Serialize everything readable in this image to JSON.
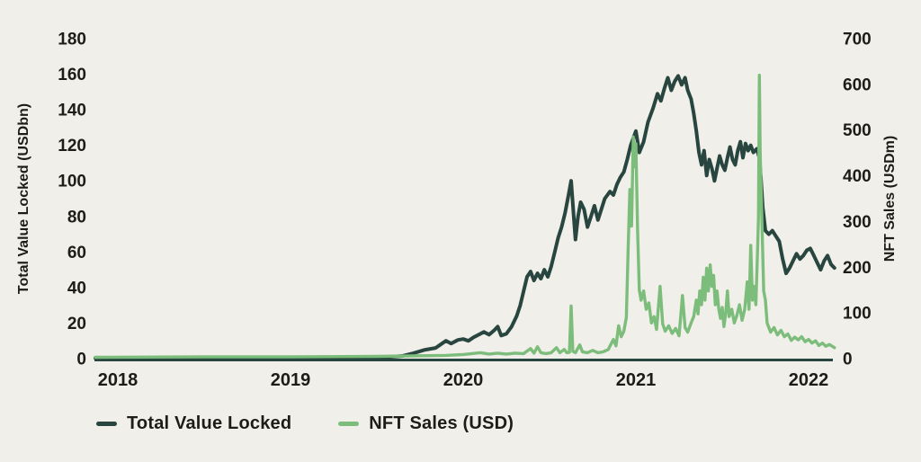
{
  "colors": {
    "background": "#f1efe9",
    "text": "#1e1c17",
    "tvl_line": "#28463f",
    "nft_line": "#7cbd7b",
    "axis_line": "#28463f"
  },
  "legend": {
    "items": [
      {
        "label": "Total Value Locked",
        "color": "#28463f"
      },
      {
        "label": "NFT Sales (USD)",
        "color": "#7cbd7b"
      }
    ]
  },
  "chart_data": {
    "type": "line",
    "title": "",
    "grid": false,
    "legend_position": "bottom-left",
    "x_axis": {
      "labels": [
        "2018",
        "2019",
        "2020",
        "2021",
        "2022"
      ],
      "label_years": [
        2018,
        2019,
        2020,
        2021,
        2022
      ],
      "range": [
        2017.865,
        2022.155
      ]
    },
    "left_axis": {
      "title": "Total Value Locked (USDbn)",
      "ticks": [
        0,
        20,
        40,
        60,
        80,
        100,
        120,
        140,
        160,
        180
      ],
      "range": [
        0,
        180
      ]
    },
    "right_axis": {
      "title": "NFT Sales (USDm)",
      "ticks": [
        0,
        100,
        200,
        300,
        400,
        500,
        600,
        700
      ],
      "range": [
        0,
        700
      ]
    },
    "series": [
      {
        "name": "Total Value Locked",
        "axis": "left",
        "color": "#28463f",
        "stroke_width": 4,
        "points": [
          [
            2017.87,
            0.3
          ],
          [
            2018.3,
            0.4
          ],
          [
            2018.7,
            0.5
          ],
          [
            2019.0,
            0.5
          ],
          [
            2019.3,
            0.6
          ],
          [
            2019.55,
            0.8
          ],
          [
            2019.65,
            1.5
          ],
          [
            2019.71,
            3
          ],
          [
            2019.78,
            5
          ],
          [
            2019.84,
            6
          ],
          [
            2019.87,
            8
          ],
          [
            2019.9,
            10
          ],
          [
            2019.93,
            8.5
          ],
          [
            2019.97,
            10.5
          ],
          [
            2020.0,
            11
          ],
          [
            2020.03,
            10
          ],
          [
            2020.06,
            12
          ],
          [
            2020.09,
            13.5
          ],
          [
            2020.12,
            15
          ],
          [
            2020.15,
            13.5
          ],
          [
            2020.18,
            16
          ],
          [
            2020.2,
            18
          ],
          [
            2020.22,
            13
          ],
          [
            2020.25,
            14
          ],
          [
            2020.28,
            18
          ],
          [
            2020.31,
            24
          ],
          [
            2020.33,
            30
          ],
          [
            2020.35,
            38
          ],
          [
            2020.37,
            46
          ],
          [
            2020.39,
            49
          ],
          [
            2020.41,
            44
          ],
          [
            2020.43,
            48
          ],
          [
            2020.45,
            45
          ],
          [
            2020.47,
            50
          ],
          [
            2020.49,
            46
          ],
          [
            2020.51,
            52
          ],
          [
            2020.53,
            60
          ],
          [
            2020.55,
            68
          ],
          [
            2020.57,
            74
          ],
          [
            2020.59,
            82
          ],
          [
            2020.61,
            92
          ],
          [
            2020.625,
            100
          ],
          [
            2020.64,
            80
          ],
          [
            2020.65,
            67
          ],
          [
            2020.665,
            80
          ],
          [
            2020.68,
            88
          ],
          [
            2020.7,
            84
          ],
          [
            2020.72,
            74
          ],
          [
            2020.74,
            80
          ],
          [
            2020.76,
            86
          ],
          [
            2020.78,
            78
          ],
          [
            2020.8,
            84
          ],
          [
            2020.82,
            90
          ],
          [
            2020.85,
            94
          ],
          [
            2020.87,
            92
          ],
          [
            2020.89,
            98
          ],
          [
            2020.91,
            102
          ],
          [
            2020.93,
            105
          ],
          [
            2020.95,
            112
          ],
          [
            2020.97,
            120
          ],
          [
            2021.0,
            128
          ],
          [
            2021.02,
            116
          ],
          [
            2021.045,
            122
          ],
          [
            2021.07,
            133
          ],
          [
            2021.1,
            141
          ],
          [
            2021.125,
            149
          ],
          [
            2021.145,
            145
          ],
          [
            2021.165,
            152
          ],
          [
            2021.185,
            158
          ],
          [
            2021.205,
            151
          ],
          [
            2021.225,
            156
          ],
          [
            2021.245,
            159
          ],
          [
            2021.265,
            154
          ],
          [
            2021.285,
            158
          ],
          [
            2021.3,
            151
          ],
          [
            2021.32,
            146
          ],
          [
            2021.335,
            138
          ],
          [
            2021.35,
            128
          ],
          [
            2021.365,
            116
          ],
          [
            2021.38,
            109
          ],
          [
            2021.395,
            117
          ],
          [
            2021.41,
            103
          ],
          [
            2021.425,
            112
          ],
          [
            2021.44,
            107
          ],
          [
            2021.455,
            100
          ],
          [
            2021.47,
            107
          ],
          [
            2021.485,
            114
          ],
          [
            2021.5,
            109
          ],
          [
            2021.515,
            106
          ],
          [
            2021.53,
            113
          ],
          [
            2021.545,
            119
          ],
          [
            2021.56,
            112
          ],
          [
            2021.575,
            109
          ],
          [
            2021.59,
            117
          ],
          [
            2021.605,
            122
          ],
          [
            2021.62,
            113
          ],
          [
            2021.635,
            121
          ],
          [
            2021.65,
            117
          ],
          [
            2021.665,
            120
          ],
          [
            2021.68,
            116
          ],
          [
            2021.7,
            118
          ],
          [
            2021.715,
            113
          ],
          [
            2021.725,
            100
          ],
          [
            2021.735,
            85
          ],
          [
            2021.75,
            72
          ],
          [
            2021.77,
            70
          ],
          [
            2021.79,
            72
          ],
          [
            2021.81,
            69
          ],
          [
            2021.83,
            66
          ],
          [
            2021.85,
            56
          ],
          [
            2021.87,
            48
          ],
          [
            2021.89,
            51
          ],
          [
            2021.91,
            55
          ],
          [
            2021.93,
            59
          ],
          [
            2021.95,
            56
          ],
          [
            2021.97,
            58
          ],
          [
            2021.99,
            61
          ],
          [
            2022.01,
            62
          ],
          [
            2022.03,
            58
          ],
          [
            2022.05,
            54
          ],
          [
            2022.07,
            50
          ],
          [
            2022.09,
            55
          ],
          [
            2022.11,
            58
          ],
          [
            2022.13,
            53
          ],
          [
            2022.15,
            51
          ]
        ]
      },
      {
        "name": "NFT Sales (USD)",
        "axis": "right",
        "color": "#7cbd7b",
        "stroke_width": 3.4,
        "points": [
          [
            2017.87,
            3
          ],
          [
            2018.5,
            4
          ],
          [
            2019.0,
            4
          ],
          [
            2019.5,
            5
          ],
          [
            2019.9,
            7
          ],
          [
            2020.0,
            9
          ],
          [
            2020.05,
            11
          ],
          [
            2020.1,
            13
          ],
          [
            2020.15,
            10
          ],
          [
            2020.2,
            12
          ],
          [
            2020.25,
            10
          ],
          [
            2020.3,
            12
          ],
          [
            2020.35,
            11
          ],
          [
            2020.39,
            22
          ],
          [
            2020.41,
            12
          ],
          [
            2020.43,
            26
          ],
          [
            2020.45,
            13
          ],
          [
            2020.48,
            11
          ],
          [
            2020.51,
            13
          ],
          [
            2020.54,
            24
          ],
          [
            2020.56,
            13
          ],
          [
            2020.585,
            20
          ],
          [
            2020.6,
            13
          ],
          [
            2020.615,
            14
          ],
          [
            2020.625,
            115
          ],
          [
            2020.635,
            16
          ],
          [
            2020.65,
            13
          ],
          [
            2020.675,
            30
          ],
          [
            2020.69,
            15
          ],
          [
            2020.72,
            13
          ],
          [
            2020.75,
            18
          ],
          [
            2020.78,
            13
          ],
          [
            2020.81,
            15
          ],
          [
            2020.84,
            20
          ],
          [
            2020.87,
            42
          ],
          [
            2020.885,
            28
          ],
          [
            2020.9,
            72
          ],
          [
            2020.915,
            48
          ],
          [
            2020.93,
            60
          ],
          [
            2020.945,
            90
          ],
          [
            2020.955,
            240
          ],
          [
            2020.965,
            370
          ],
          [
            2020.975,
            290
          ],
          [
            2020.985,
            485
          ],
          [
            2020.995,
            420
          ],
          [
            2021.0,
            470
          ],
          [
            2021.01,
            280
          ],
          [
            2021.02,
            150
          ],
          [
            2021.03,
            128
          ],
          [
            2021.045,
            148
          ],
          [
            2021.06,
            108
          ],
          [
            2021.075,
            122
          ],
          [
            2021.09,
            78
          ],
          [
            2021.105,
            92
          ],
          [
            2021.12,
            64
          ],
          [
            2021.14,
            158
          ],
          [
            2021.155,
            76
          ],
          [
            2021.17,
            60
          ],
          [
            2021.19,
            72
          ],
          [
            2021.21,
            55
          ],
          [
            2021.23,
            66
          ],
          [
            2021.25,
            50
          ],
          [
            2021.27,
            138
          ],
          [
            2021.285,
            68
          ],
          [
            2021.3,
            58
          ],
          [
            2021.32,
            78
          ],
          [
            2021.335,
            92
          ],
          [
            2021.35,
            128
          ],
          [
            2021.36,
            98
          ],
          [
            2021.37,
            148
          ],
          [
            2021.38,
            118
          ],
          [
            2021.39,
            178
          ],
          [
            2021.4,
            128
          ],
          [
            2021.41,
            198
          ],
          [
            2021.42,
            148
          ],
          [
            2021.43,
            205
          ],
          [
            2021.44,
            158
          ],
          [
            2021.45,
            182
          ],
          [
            2021.46,
            118
          ],
          [
            2021.47,
            148
          ],
          [
            2021.48,
            108
          ],
          [
            2021.49,
            88
          ],
          [
            2021.5,
            112
          ],
          [
            2021.51,
            70
          ],
          [
            2021.52,
            98
          ],
          [
            2021.53,
            148
          ],
          [
            2021.54,
            92
          ],
          [
            2021.555,
            108
          ],
          [
            2021.57,
            78
          ],
          [
            2021.585,
            95
          ],
          [
            2021.6,
            118
          ],
          [
            2021.615,
            84
          ],
          [
            2021.63,
            108
          ],
          [
            2021.645,
            168
          ],
          [
            2021.655,
            108
          ],
          [
            2021.665,
            248
          ],
          [
            2021.675,
            128
          ],
          [
            2021.685,
            158
          ],
          [
            2021.695,
            118
          ],
          [
            2021.705,
            245
          ],
          [
            2021.71,
            310
          ],
          [
            2021.715,
            620
          ],
          [
            2021.72,
            450
          ],
          [
            2021.73,
            295
          ],
          [
            2021.74,
            148
          ],
          [
            2021.75,
            128
          ],
          [
            2021.76,
            78
          ],
          [
            2021.78,
            58
          ],
          [
            2021.8,
            68
          ],
          [
            2021.82,
            52
          ],
          [
            2021.84,
            62
          ],
          [
            2021.86,
            48
          ],
          [
            2021.88,
            54
          ],
          [
            2021.9,
            40
          ],
          [
            2021.92,
            47
          ],
          [
            2021.94,
            41
          ],
          [
            2021.96,
            48
          ],
          [
            2021.98,
            37
          ],
          [
            2022.0,
            42
          ],
          [
            2022.02,
            34
          ],
          [
            2022.04,
            39
          ],
          [
            2022.06,
            29
          ],
          [
            2022.08,
            34
          ],
          [
            2022.1,
            27
          ],
          [
            2022.12,
            31
          ],
          [
            2022.15,
            24
          ]
        ]
      }
    ]
  }
}
